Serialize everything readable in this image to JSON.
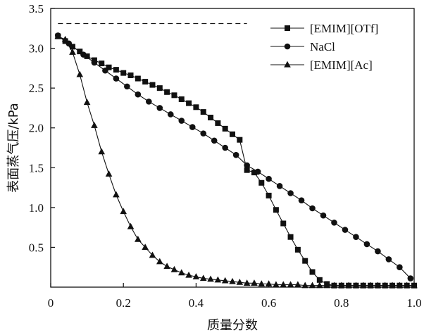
{
  "chart_data": {
    "type": "line",
    "title": "",
    "xlabel": "质量分数",
    "ylabel": "表面蒸气压/kPa",
    "xlim": [
      0,
      1.0
    ],
    "ylim": [
      0,
      3.5
    ],
    "x_ticks": [
      "0",
      "0.2",
      "0.4",
      "0.6",
      "0.8",
      "1.0"
    ],
    "x_tick_values": [
      0,
      0.2,
      0.4,
      0.6,
      0.8,
      1.0
    ],
    "y_ticks": [
      "0.5",
      "1.0",
      "1.5",
      "2.0",
      "2.5",
      "3.0",
      "3.5"
    ],
    "y_tick_values": [
      0.5,
      1.0,
      1.5,
      2.0,
      2.5,
      3.0,
      3.5
    ],
    "grid": false,
    "legend_position": "top-right",
    "reference_line": {
      "y": 3.31,
      "x_range": [
        0.02,
        0.54
      ],
      "style": "dashed"
    },
    "series": [
      {
        "name": "[EMIM][OTf]",
        "marker": "square",
        "x": [
          0.02,
          0.04,
          0.06,
          0.08,
          0.1,
          0.12,
          0.14,
          0.16,
          0.18,
          0.2,
          0.22,
          0.24,
          0.26,
          0.28,
          0.3,
          0.32,
          0.34,
          0.36,
          0.38,
          0.4,
          0.42,
          0.44,
          0.46,
          0.48,
          0.5,
          0.52,
          0.54,
          0.56,
          0.58,
          0.6,
          0.62,
          0.64,
          0.66,
          0.68,
          0.7,
          0.72,
          0.74,
          0.76,
          0.78,
          0.8,
          0.82,
          0.84,
          0.86,
          0.88,
          0.9,
          0.92,
          0.94,
          0.96,
          0.98,
          1.0
        ],
        "y": [
          3.15,
          3.09,
          3.02,
          2.96,
          2.9,
          2.85,
          2.81,
          2.76,
          2.73,
          2.69,
          2.66,
          2.62,
          2.58,
          2.54,
          2.5,
          2.45,
          2.41,
          2.36,
          2.31,
          2.26,
          2.2,
          2.13,
          2.06,
          1.99,
          1.92,
          1.85,
          1.47,
          1.44,
          1.31,
          1.15,
          0.97,
          0.8,
          0.63,
          0.47,
          0.33,
          0.19,
          0.09,
          0.04,
          0.02,
          0.02,
          0.02,
          0.02,
          0.02,
          0.02,
          0.02,
          0.02,
          0.02,
          0.02,
          0.02,
          0.02
        ]
      },
      {
        "name": "NaCl",
        "marker": "circle",
        "x": [
          0.02,
          0.05,
          0.09,
          0.12,
          0.15,
          0.18,
          0.21,
          0.24,
          0.27,
          0.3,
          0.33,
          0.36,
          0.39,
          0.42,
          0.45,
          0.48,
          0.51,
          0.54,
          0.57,
          0.6,
          0.63,
          0.66,
          0.69,
          0.72,
          0.75,
          0.78,
          0.81,
          0.84,
          0.87,
          0.9,
          0.93,
          0.96,
          0.99
        ],
        "y": [
          3.16,
          3.06,
          2.92,
          2.82,
          2.72,
          2.62,
          2.52,
          2.42,
          2.33,
          2.25,
          2.17,
          2.09,
          2.01,
          1.93,
          1.84,
          1.75,
          1.66,
          1.53,
          1.45,
          1.36,
          1.27,
          1.18,
          1.09,
          0.99,
          0.9,
          0.81,
          0.72,
          0.63,
          0.54,
          0.45,
          0.35,
          0.25,
          0.11
        ]
      },
      {
        "name": "[EMIM][Ac]",
        "marker": "triangle",
        "x": [
          0.02,
          0.04,
          0.06,
          0.08,
          0.1,
          0.12,
          0.14,
          0.16,
          0.18,
          0.2,
          0.22,
          0.24,
          0.26,
          0.28,
          0.3,
          0.32,
          0.34,
          0.36,
          0.38,
          0.4,
          0.42,
          0.44,
          0.46,
          0.48,
          0.5,
          0.52,
          0.54,
          0.56,
          0.58,
          0.6,
          0.62,
          0.64,
          0.66,
          0.68,
          0.7,
          0.72,
          0.74,
          0.76,
          0.78,
          0.8,
          0.82,
          0.84,
          0.86,
          0.88,
          0.9,
          0.92,
          0.94,
          0.96,
          0.98,
          1.0
        ],
        "y": [
          3.15,
          3.11,
          2.95,
          2.67,
          2.32,
          2.03,
          1.7,
          1.42,
          1.16,
          0.95,
          0.76,
          0.6,
          0.5,
          0.4,
          0.32,
          0.26,
          0.22,
          0.18,
          0.15,
          0.13,
          0.11,
          0.1,
          0.09,
          0.08,
          0.07,
          0.06,
          0.05,
          0.05,
          0.04,
          0.04,
          0.03,
          0.03,
          0.03,
          0.03,
          0.02,
          0.02,
          0.02,
          0.02,
          0.02,
          0.02,
          0.02,
          0.02,
          0.02,
          0.02,
          0.02,
          0.02,
          0.02,
          0.02,
          0.02,
          0.02
        ]
      }
    ],
    "colors": {
      "ink": "#111111",
      "background": "#ffffff"
    }
  }
}
